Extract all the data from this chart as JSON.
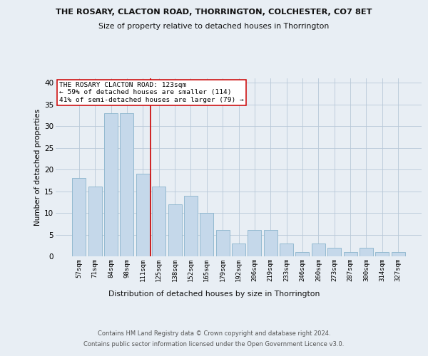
{
  "title1": "THE ROSARY, CLACTON ROAD, THORRINGTON, COLCHESTER, CO7 8ET",
  "title2": "Size of property relative to detached houses in Thorrington",
  "xlabel": "Distribution of detached houses by size in Thorrington",
  "ylabel": "Number of detached properties",
  "categories": [
    "57sqm",
    "71sqm",
    "84sqm",
    "98sqm",
    "111sqm",
    "125sqm",
    "138sqm",
    "152sqm",
    "165sqm",
    "179sqm",
    "192sqm",
    "206sqm",
    "219sqm",
    "233sqm",
    "246sqm",
    "260sqm",
    "273sqm",
    "287sqm",
    "300sqm",
    "314sqm",
    "327sqm"
  ],
  "values": [
    18,
    16,
    33,
    33,
    19,
    16,
    12,
    14,
    10,
    6,
    3,
    6,
    6,
    3,
    1,
    3,
    2,
    1,
    2,
    1,
    1
  ],
  "bar_color": "#c5d8ea",
  "bar_edge_color": "#8ab4cc",
  "highlight_index": 4,
  "highlight_color": "#cc0000",
  "annotation_title": "THE ROSARY CLACTON ROAD: 123sqm",
  "annotation_line1": "← 59% of detached houses are smaller (114)",
  "annotation_line2": "41% of semi-detached houses are larger (79) →",
  "annotation_box_color": "#ffffff",
  "annotation_box_edge": "#cc0000",
  "ylim": [
    0,
    41
  ],
  "yticks": [
    0,
    5,
    10,
    15,
    20,
    25,
    30,
    35,
    40
  ],
  "footer1": "Contains HM Land Registry data © Crown copyright and database right 2024.",
  "footer2": "Contains public sector information licensed under the Open Government Licence v3.0.",
  "bg_color": "#e8eef4",
  "plot_bg_color": "#e8eef4"
}
